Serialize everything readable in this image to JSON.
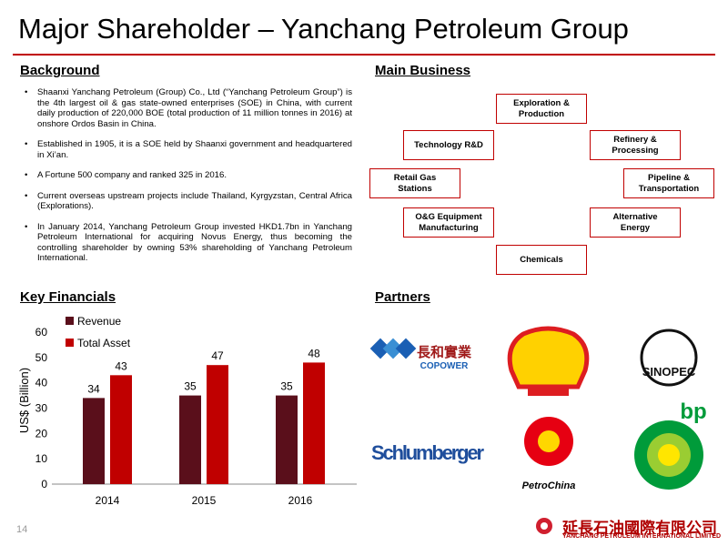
{
  "title": "Major Shareholder – Yanchang Petroleum Group",
  "background": {
    "heading": "Background",
    "bullets": [
      "Shaanxi Yanchang Petroleum (Group) Co., Ltd (“Yanchang Petroleum Group”) is the 4th largest oil & gas state-owned enterprises (SOE) in China, with current daily production of 220,000 BOE (total production of 11 million tonnes in 2016) at onshore Ordos Basin in China.",
      "Established in 1905, it is a SOE held by Shaanxi government and headquartered in Xi’an.",
      "A Fortune 500 company and ranked 325 in 2016.",
      "Current overseas upstream projects include Thailand, Kyrgyzstan, Central Africa (Explorations).",
      "In January 2014, Yanchang Petroleum Group invested HKD1.7bn in Yanchang Petroleum International for acquiring Novus Energy, thus becoming the controlling shareholder by owning 53% shareholding of Yanchang Petroleum International."
    ]
  },
  "main_business": {
    "heading": "Main Business",
    "items": [
      "Exploration &\nProduction",
      "Technology R&D",
      "Refinery &\nProcessing",
      "Retail Gas\nStations",
      "Pipeline &\nTransportation",
      "O&G Equipment\nManufacturing",
      "Alternative\nEnergy",
      "Chemicals"
    ]
  },
  "financials": {
    "heading": "Key Financials"
  },
  "chart_data": {
    "type": "bar",
    "y_label": "US$ (Billion)",
    "categories": [
      "2014",
      "2015",
      "2016"
    ],
    "series": [
      {
        "name": "Revenue",
        "color": "#5a0f1b",
        "values": [
          34,
          35,
          35
        ]
      },
      {
        "name": "Total Asset",
        "color": "#c00000",
        "values": [
          43,
          47,
          48
        ]
      }
    ],
    "ylim": [
      0,
      60
    ],
    "yticks": [
      0,
      10,
      20,
      30,
      40,
      50,
      60
    ],
    "grid": false,
    "legend": "top-left"
  },
  "partners": {
    "heading": "Partners",
    "logos": [
      "長和實業",
      "COPOWER",
      "Schlumberger",
      "PetroChina",
      "bp"
    ]
  },
  "footer": {
    "page": "14",
    "company_cn": "延長石油國際有限公司",
    "company_en": "YANCHANG PETROLEUM INTERNATIONAL LIMITED"
  }
}
